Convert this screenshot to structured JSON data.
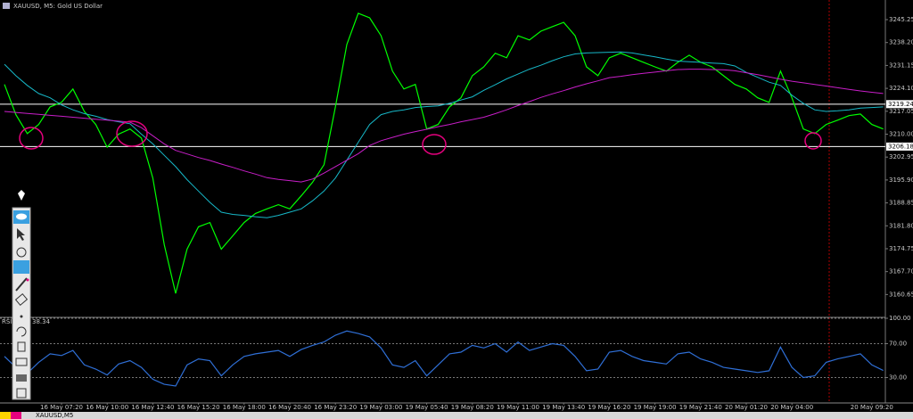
{
  "window": {
    "title": "XAUUSD, M5: Gold US Dollar",
    "tab": "XAUUSD,M5"
  },
  "chart_data": [
    {
      "type": "line",
      "categories": [
        null,
        null,
        null,
        null,
        null,
        "16 May 07:20",
        null,
        null,
        null,
        "16 May 10:00",
        null,
        null,
        null,
        "16 May 12:40",
        null,
        null,
        null,
        "16 May 15:20",
        null,
        null,
        null,
        "16 May 18:00",
        null,
        null,
        null,
        "16 May 20:40",
        null,
        null,
        null,
        "16 May 23:20",
        null,
        null,
        null,
        "19 May 03:00",
        null,
        null,
        null,
        "19 May 05:40",
        null,
        null,
        null,
        "19 May 08:20",
        null,
        null,
        null,
        "19 May 11:00",
        null,
        null,
        null,
        "19 May 13:40",
        null,
        null,
        null,
        "19 May 16:20",
        null,
        null,
        null,
        "19 May 19:00",
        null,
        null,
        null,
        "19 May 21:40",
        null,
        null,
        null,
        "20 May 01:20",
        null,
        null,
        null,
        "20 May 04:00",
        null,
        null,
        null,
        null,
        null,
        null,
        "20 May 09:20",
        null
      ],
      "series": [
        {
          "color": "#00ff00",
          "values": [
            3225.3,
            3216,
            3210.2,
            3213,
            3218.4,
            3219.8,
            3223.9,
            3217,
            3213,
            3206,
            3210,
            3211.6,
            3208.8,
            3196.5,
            3176,
            3161,
            3174.6,
            3181.5,
            3182.8,
            3174.6,
            3178.7,
            3182.8,
            3185.6,
            3187,
            3188.3,
            3187,
            3191,
            3195.2,
            3200.6,
            3218.4,
            3237.6,
            3247.2,
            3245.8,
            3240.3,
            3229.4,
            3223.9,
            3225.3,
            3211.6,
            3213,
            3218.4,
            3221.2,
            3228,
            3230.7,
            3234.9,
            3233.5,
            3240.3,
            3239,
            3241.7,
            3243.1,
            3244.4,
            3240.3,
            3230.7,
            3228,
            3233.5,
            3234.9,
            3233.5,
            3232.1,
            3230.7,
            3229.4,
            3232.1,
            3234.3,
            3232.1,
            3230.7,
            3228,
            3225.3,
            3223.9,
            3221.2,
            3219.8,
            3229.4,
            3221.2,
            3211.6,
            3210.2,
            3213,
            3214.3,
            3215.7,
            3216.2,
            3213,
            3211.6
          ]
        },
        {
          "color": "#17b8c8",
          "values": [
            3231.5,
            3228,
            3225,
            3222.5,
            3221.2,
            3219,
            3217.5,
            3216.3,
            3215.5,
            3214.5,
            3213.8,
            3213.2,
            3210,
            3207,
            3203.5,
            3200,
            3196,
            3192.5,
            3189,
            3186,
            3185.3,
            3185,
            3184.6,
            3184.3,
            3185,
            3186,
            3187,
            3189.5,
            3192.5,
            3196.5,
            3202,
            3207.5,
            3213,
            3216,
            3217,
            3217.5,
            3218.2,
            3218.5,
            3218.7,
            3219.5,
            3220.5,
            3221.5,
            3223.5,
            3225.2,
            3227,
            3228.5,
            3230,
            3231.2,
            3232.6,
            3233.8,
            3234.7,
            3235,
            3235.1,
            3235.2,
            3235.3,
            3235,
            3234.4,
            3233.8,
            3233.1,
            3232.5,
            3232.3,
            3232.1,
            3231.9,
            3231.7,
            3231,
            3229,
            3227.5,
            3226,
            3225,
            3222,
            3219.5,
            3217.5,
            3217,
            3217.2,
            3217.5,
            3218,
            3218.2,
            3218.4
          ]
        },
        {
          "color": "#c81ec8",
          "values": [
            3217,
            3216.7,
            3216.4,
            3216.1,
            3215.8,
            3215.5,
            3215.2,
            3214.9,
            3214.6,
            3214.3,
            3214,
            3213.7,
            3212,
            3209.5,
            3207,
            3205,
            3203.9,
            3202.8,
            3201.9,
            3200.8,
            3199.8,
            3198.7,
            3197.7,
            3196.6,
            3196.1,
            3195.7,
            3195.3,
            3196.2,
            3198,
            3200,
            3202,
            3204,
            3206.5,
            3208,
            3209,
            3210,
            3210.8,
            3211.5,
            3212.3,
            3213,
            3213.8,
            3214.5,
            3215.2,
            3216.3,
            3217.5,
            3218.8,
            3220,
            3221.3,
            3222.4,
            3223.4,
            3224.5,
            3225.5,
            3226.4,
            3227.4,
            3227.8,
            3228.3,
            3228.7,
            3229.1,
            3229.5,
            3229.9,
            3230,
            3230,
            3229.9,
            3229.8,
            3229.5,
            3228.9,
            3228.3,
            3227.6,
            3226.9,
            3226.3,
            3225.8,
            3225.3,
            3224.8,
            3224.3,
            3223.8,
            3223.3,
            3222.9,
            3222.5
          ]
        }
      ],
      "ylim": [
        3153.89,
        3251.29
      ],
      "yticks": [
        3245.25,
        {
          "value": 3238.2,
          "label": "3238.20"
        },
        3231.15,
        {
          "value": 3224.1,
          "label": "3224.10"
        },
        3217.05,
        {
          "value": 3210,
          "label": "3210.00"
        },
        3202.95,
        {
          "value": 3195.9,
          "label": "3195.90"
        },
        3188.85,
        {
          "value": 3181.8,
          "label": "3181.80"
        },
        3174.75,
        {
          "value": 3167.7,
          "label": "3167.70"
        },
        3160.65
      ],
      "levels": [
        3219.24,
        3206.18
      ],
      "level_color": "#ffffff"
    },
    {
      "type": "line",
      "title": "RSI",
      "current": 38.34,
      "series": [
        {
          "color": "#2f6fd6",
          "values": [
            55,
            42,
            35,
            48,
            58,
            56,
            62,
            45,
            40,
            33,
            46,
            50,
            42,
            28,
            22,
            20,
            45,
            52,
            50,
            32,
            45,
            55,
            58,
            60,
            62,
            55,
            63,
            68,
            72,
            80,
            85,
            82,
            78,
            65,
            45,
            42,
            50,
            32,
            45,
            58,
            60,
            68,
            65,
            70,
            60,
            72,
            62,
            66,
            70,
            68,
            55,
            38,
            40,
            60,
            62,
            55,
            50,
            48,
            46,
            58,
            60,
            52,
            48,
            42,
            40,
            38,
            36,
            38,
            66,
            42,
            30,
            32,
            48,
            52,
            55,
            58,
            45,
            38.34
          ]
        }
      ],
      "ylim": [
        0,
        100
      ],
      "yticks": [
        {
          "value": 100,
          "label": "100.00"
        },
        {
          "value": 70,
          "label": "70.00"
        },
        {
          "value": 30,
          "label": "30.00"
        }
      ]
    }
  ]
}
